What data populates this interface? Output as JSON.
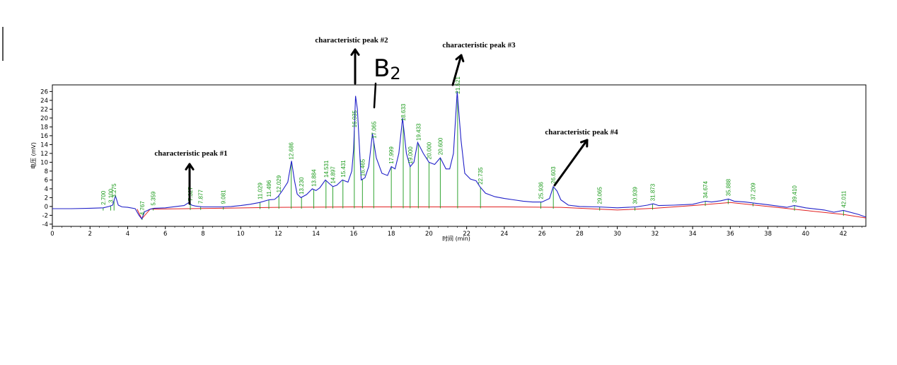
{
  "chart_data": {
    "type": "line",
    "xlabel": "时间 (min)",
    "ylabel": "电压 (mV)",
    "xlim": [
      0,
      43.2
    ],
    "ylim": [
      -4.5,
      27.5
    ],
    "x_ticks": [
      "0",
      "2",
      "4",
      "6",
      "8",
      "10",
      "12",
      "14",
      "16",
      "18",
      "20",
      "22",
      "24",
      "26",
      "28",
      "30",
      "32",
      "34",
      "36",
      "38",
      "40",
      "42"
    ],
    "y_ticks": [
      "-4",
      "-2",
      "0",
      "2",
      "4",
      "6",
      "8",
      "10",
      "12",
      "14",
      "16",
      "18",
      "20",
      "22",
      "24",
      "26"
    ],
    "colors": {
      "signal": "#2020c8",
      "baseline": "#e02020",
      "peak_marker": "#1a9a1a",
      "annotation": "#000000"
    },
    "series": [
      {
        "name": "",
        "x": [
          0,
          1,
          2,
          2.7,
          3.0,
          3.2,
          3.35,
          3.5,
          3.7,
          4.0,
          4.4,
          4.6,
          4.75,
          4.9,
          5.2,
          5.4,
          6.0,
          7.0,
          7.25,
          7.4,
          7.6,
          8.0,
          9.0,
          9.5,
          10.0,
          10.5,
          11.0,
          11.5,
          11.8,
          12.0,
          12.2,
          12.5,
          12.7,
          12.85,
          13.0,
          13.2,
          13.5,
          13.8,
          14.0,
          14.2,
          14.5,
          14.7,
          14.9,
          15.1,
          15.4,
          15.7,
          15.9,
          16.0,
          16.1,
          16.2,
          16.4,
          16.6,
          16.8,
          17.0,
          17.2,
          17.5,
          17.8,
          18.0,
          18.2,
          18.4,
          18.6,
          18.8,
          19.0,
          19.2,
          19.4,
          19.7,
          20.0,
          20.3,
          20.6,
          20.9,
          21.1,
          21.3,
          21.5,
          21.7,
          21.9,
          22.2,
          22.5,
          22.7,
          23.0,
          23.5,
          24.0,
          24.5,
          25.0,
          25.5,
          26.0,
          26.4,
          26.6,
          26.8,
          27.0,
          27.4,
          28.0,
          29.0,
          30.0,
          31.0,
          31.6,
          31.9,
          32.2,
          33.0,
          34.0,
          34.7,
          35.0,
          35.5,
          35.9,
          36.2,
          36.8,
          37.2,
          38.0,
          39.0,
          39.4,
          40.0,
          41.0,
          41.5,
          42.0,
          42.8,
          43.2
        ],
        "y": [
          -0.5,
          -0.5,
          -0.4,
          -0.3,
          0.0,
          0.3,
          2.4,
          0.3,
          -0.1,
          -0.2,
          -0.5,
          -2.0,
          -2.8,
          -1.2,
          -0.6,
          -0.4,
          -0.3,
          0.2,
          0.9,
          0.3,
          0.1,
          -0.1,
          -0.1,
          0.0,
          0.2,
          0.5,
          0.9,
          1.5,
          1.6,
          2.3,
          3.5,
          5.5,
          10.3,
          6.0,
          2.8,
          2.0,
          2.7,
          4.0,
          3.6,
          4.2,
          6.0,
          5.2,
          4.5,
          4.8,
          6.0,
          5.5,
          8.0,
          13.0,
          25.0,
          22.0,
          6.0,
          6.5,
          9.0,
          16.5,
          11.0,
          7.5,
          7.0,
          9.0,
          8.5,
          12.0,
          20.0,
          12.0,
          9.0,
          10.0,
          14.5,
          12.0,
          10.0,
          9.5,
          11.0,
          8.5,
          8.5,
          12.0,
          26.0,
          15.0,
          7.5,
          6.2,
          5.8,
          4.5,
          3.0,
          2.2,
          1.8,
          1.5,
          1.2,
          1.0,
          1.0,
          1.8,
          4.5,
          3.5,
          1.5,
          0.3,
          0.0,
          -0.1,
          -0.3,
          -0.1,
          0.3,
          0.6,
          0.2,
          0.3,
          0.5,
          1.2,
          1.0,
          1.3,
          1.7,
          1.2,
          1.0,
          0.8,
          0.4,
          -0.2,
          0.2,
          -0.3,
          -0.8,
          -1.3,
          -0.9,
          -1.8,
          -2.4
        ]
      },
      {
        "name": "",
        "x": [
          4.5,
          4.75,
          5.2,
          9.0,
          12.0,
          16.0,
          20.0,
          24.0,
          27.0,
          29.0,
          30.0,
          32.0,
          34.0,
          36.0,
          38.0,
          40.0,
          42.0,
          43.2
        ],
        "y": [
          -0.6,
          -2.8,
          -0.6,
          -0.4,
          -0.2,
          -0.1,
          -0.1,
          -0.1,
          -0.2,
          -0.6,
          -0.8,
          -0.4,
          0.2,
          0.9,
          0.0,
          -0.9,
          -1.8,
          -2.6
        ]
      }
    ],
    "peaks": [
      {
        "rt": 2.7,
        "label": "2.700"
      },
      {
        "rt": 3.1,
        "label": "3.100"
      },
      {
        "rt": 3.275,
        "label": "3.275"
      },
      {
        "rt": 4.767,
        "label": "4.767"
      },
      {
        "rt": 5.359,
        "label": "5.359"
      },
      {
        "rt": 7.327,
        "label": "7.327"
      },
      {
        "rt": 7.877,
        "label": "7.877"
      },
      {
        "rt": 9.081,
        "label": "9.081"
      },
      {
        "rt": 11.029,
        "label": "11.029"
      },
      {
        "rt": 11.496,
        "label": "11.496"
      },
      {
        "rt": 12.029,
        "label": "12.029"
      },
      {
        "rt": 12.686,
        "label": "12.686"
      },
      {
        "rt": 13.23,
        "label": "13.230"
      },
      {
        "rt": 13.884,
        "label": "13.884"
      },
      {
        "rt": 14.531,
        "label": "14.531"
      },
      {
        "rt": 14.897,
        "label": "14.897"
      },
      {
        "rt": 15.431,
        "label": "15.431"
      },
      {
        "rt": 16.035,
        "label": "16.035"
      },
      {
        "rt": 16.465,
        "label": "16.465"
      },
      {
        "rt": 17.065,
        "label": "17.065"
      },
      {
        "rt": 17.999,
        "label": "17.999"
      },
      {
        "rt": 18.633,
        "label": "18.633"
      },
      {
        "rt": 19.0,
        "label": "19.000"
      },
      {
        "rt": 19.433,
        "label": "19.433"
      },
      {
        "rt": 20.0,
        "label": "20.000"
      },
      {
        "rt": 20.6,
        "label": "20.600"
      },
      {
        "rt": 21.521,
        "label": "21.521"
      },
      {
        "rt": 22.735,
        "label": "22.735"
      },
      {
        "rt": 25.936,
        "label": "25.936"
      },
      {
        "rt": 26.603,
        "label": "26.603"
      },
      {
        "rt": 29.065,
        "label": "29.065"
      },
      {
        "rt": 30.939,
        "label": "30.939"
      },
      {
        "rt": 31.873,
        "label": "31.873"
      },
      {
        "rt": 34.674,
        "label": "34.674"
      },
      {
        "rt": 35.888,
        "label": "35.888"
      },
      {
        "rt": 37.209,
        "label": "37.209"
      },
      {
        "rt": 39.41,
        "label": "39.410"
      },
      {
        "rt": 42.011,
        "label": "42.011"
      }
    ],
    "annotations": [
      {
        "text": "characteristic peak #1",
        "peak_rt": 7.327
      },
      {
        "text": "characteristic peak #2",
        "peak_rt": 16.035
      },
      {
        "text": "characteristic peak #3",
        "peak_rt": 21.521
      },
      {
        "text": "characteristic peak #4",
        "peak_rt": 26.603
      }
    ],
    "handwritten_label": {
      "text": "B2",
      "peak_rt": 17.065
    },
    "grid": false,
    "legend": "none"
  }
}
